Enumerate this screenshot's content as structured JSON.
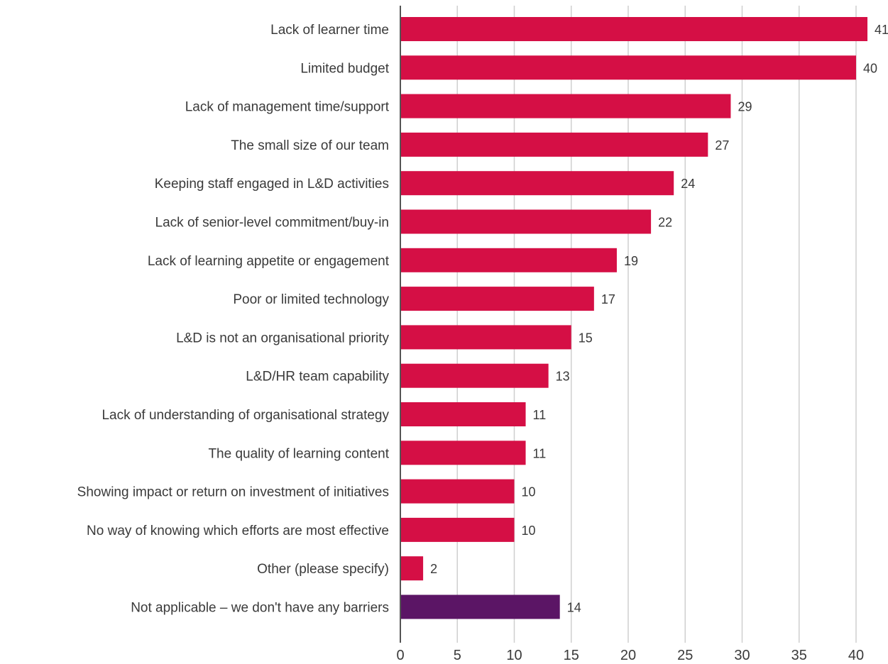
{
  "chart_data": {
    "type": "bar",
    "orientation": "horizontal",
    "categories": [
      "Lack of learner time",
      "Limited budget",
      "Lack of management time/support",
      "The small size of our team",
      "Keeping staff engaged in L&D activities",
      "Lack of senior-level commitment/buy-in",
      "Lack of learning appetite or engagement",
      "Poor or limited technology",
      "L&D is not an organisational priority",
      "L&D/HR team capability",
      "Lack of understanding of organisational strategy",
      "The quality of learning content",
      "Showing impact or return on investment of initiatives",
      "No way of knowing which efforts are most effective",
      "Other (please specify)",
      "Not applicable – we don't have any barriers"
    ],
    "values": [
      41,
      40,
      29,
      27,
      24,
      22,
      19,
      17,
      15,
      13,
      11,
      11,
      10,
      10,
      2,
      14
    ],
    "value_labels": [
      "41",
      "40",
      "29",
      "27",
      "24",
      "22",
      "19",
      "17",
      "15",
      "13",
      "11",
      "11",
      "10",
      "10",
      "2",
      "14"
    ],
    "bar_colors": [
      "#d50f45",
      "#d50f45",
      "#d50f45",
      "#d50f45",
      "#d50f45",
      "#d50f45",
      "#d50f45",
      "#d50f45",
      "#d50f45",
      "#d50f45",
      "#d50f45",
      "#d50f45",
      "#d50f45",
      "#d50f45",
      "#d50f45",
      "#5b1565"
    ],
    "xticks": [
      0,
      5,
      10,
      15,
      20,
      25,
      30,
      35,
      40
    ],
    "xtick_labels": [
      "0",
      "5",
      "10",
      "15",
      "20",
      "25",
      "30",
      "35",
      "40"
    ],
    "xlim": [
      0,
      41
    ],
    "title": "",
    "xlabel": "",
    "ylabel": "",
    "grid": "vertical",
    "legend": "none"
  }
}
